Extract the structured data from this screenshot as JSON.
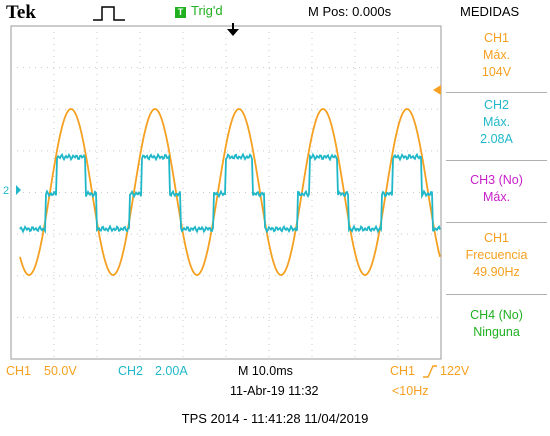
{
  "header": {
    "brand": "Tek",
    "trigger_badge": "T",
    "trigger_status": "Trig'd",
    "m_pos": "M Pos: 0.000s",
    "menu_title": "MEDIDAS"
  },
  "menu": {
    "items": [
      {
        "lines": [
          "CH1",
          "Máx.",
          "104V"
        ],
        "color": "#f5a020"
      },
      {
        "lines": [
          "CH2",
          "Máx.",
          "2.08A"
        ],
        "color": "#20b8c8"
      },
      {
        "lines": [
          "CH3 (No)",
          "Máx."
        ],
        "color": "#c820c8"
      },
      {
        "lines": [
          "CH1",
          "Frecuencia",
          "49.90Hz"
        ],
        "color": "#f5a020"
      },
      {
        "lines": [
          "CH4 (No)",
          "Ninguna"
        ],
        "color": "#20b020"
      }
    ]
  },
  "bottom": {
    "ch1_label": "CH1",
    "ch1_scale": "50.0V",
    "ch2_label": "CH2",
    "ch2_scale": "2.00A",
    "timebase": "M 10.0ms",
    "date_time": "11-Abr-19 11:32",
    "trigger_source": "CH1",
    "trigger_level": "122V",
    "trigger_freq": "<10Hz"
  },
  "ch2_marker": "2",
  "footer": "TPS 2014 - 11:41:28   11/04/2019",
  "colors": {
    "ch1": "#f5a020",
    "ch2": "#20b8c8",
    "ch3": "#c820c8",
    "ch4": "#20b020",
    "grid": "#c8c8c8"
  },
  "icons": [
    "run-pulse-icon",
    "trigger-position-icon",
    "trigger-level-icon",
    "ch2-ground-marker-icon"
  ]
}
